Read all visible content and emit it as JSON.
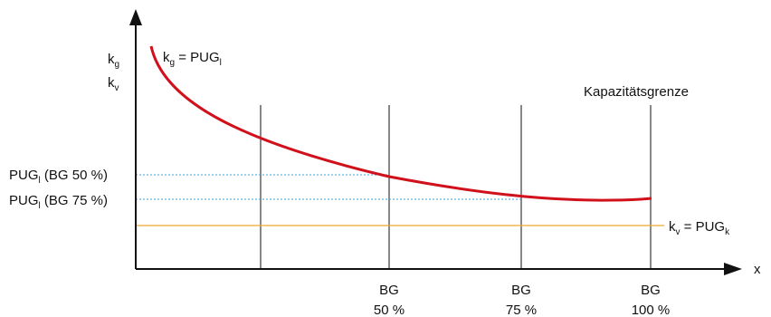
{
  "chart_data": {
    "type": "line",
    "y_axis_label_top": {
      "base": "k",
      "sub": "g"
    },
    "y_axis_label_bottom": {
      "base": "k",
      "sub": "v"
    },
    "x_axis_label": "x",
    "curve_label": {
      "left": "k",
      "left_sub": "g",
      "eq": " = PUG",
      "right_sub": "l"
    },
    "fixed_cost_label": {
      "left": "k",
      "left_sub": "v",
      "eq": " = PUG",
      "right_sub": "k"
    },
    "capacity_label": "Kapazitätsgrenze",
    "reference_labels": [
      {
        "base": "PUG",
        "sub": "l",
        "suffix": " (BG 50 %)"
      },
      {
        "base": "PUG",
        "sub": "l",
        "suffix": " (BG 75 %)"
      }
    ],
    "x_ticks": [
      {
        "line1": "BG",
        "line2": "50 %"
      },
      {
        "line1": "BG",
        "line2": "75 %"
      },
      {
        "line1": "BG",
        "line2": "100 %"
      }
    ],
    "colors": {
      "curve": "#d0111c",
      "fixed_line": "#f0a830",
      "reference_lines": "#3aa0d8",
      "axes": "#111111"
    }
  }
}
